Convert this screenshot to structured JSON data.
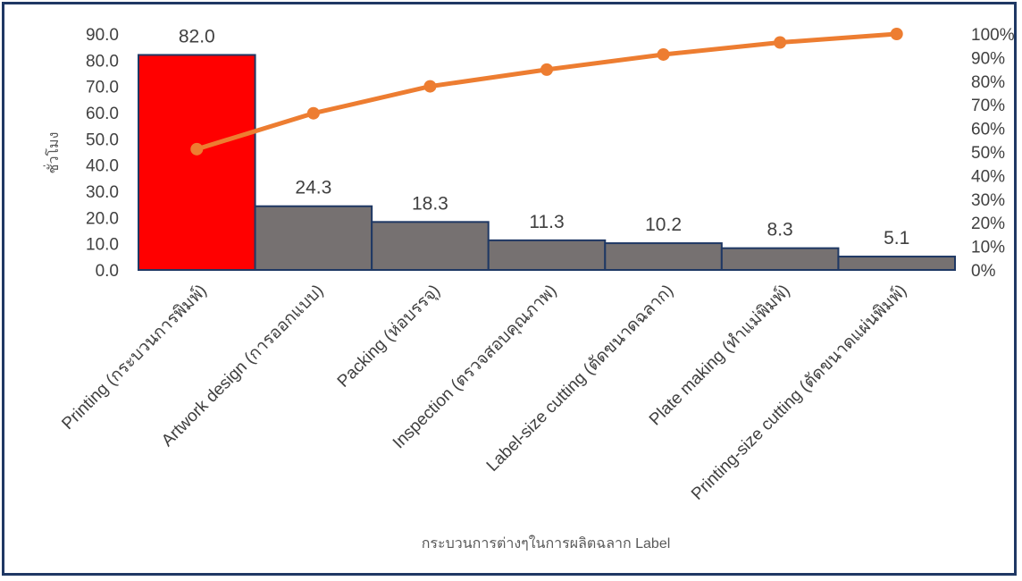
{
  "chart_data": {
    "type": "bar",
    "categories": [
      "Printing (กระบวนการพิมพ์)",
      "Artwork design (การออกแบบ)",
      "Packing (ห่อบรรจุ)",
      "Inspection (ตรวจสอบคุณภาพ)",
      "Label-size cutting (ตัดขนาดฉลาก)",
      "Plate making (ทำแม่พิมพ์)",
      "Printing-size cutting (ตัดขนาดแผ่นพิมพ์)"
    ],
    "series": [
      {
        "type": "bar",
        "values": [
          82.0,
          24.3,
          18.3,
          11.3,
          10.2,
          8.3,
          5.1
        ],
        "data_labels": [
          "82.0",
          "24.3",
          "18.3",
          "11.3",
          "10.2",
          "8.3",
          "5.1"
        ],
        "colors": [
          "#ff0000",
          "#767171",
          "#767171",
          "#767171",
          "#767171",
          "#767171",
          "#767171"
        ],
        "edge_color": "#1f3864"
      },
      {
        "type": "line",
        "axis": "secondary",
        "values": [
          51.2,
          66.4,
          77.8,
          84.9,
          91.3,
          96.4,
          100.0
        ],
        "color": "#ed7d31"
      }
    ],
    "title": "",
    "xlabel": "กระบวนการต่างๆในการผลิตฉลาก Label",
    "ylabel": "ชั่วโมง",
    "ylim": [
      0,
      90
    ],
    "yticks": [
      "0.0",
      "10.0",
      "20.0",
      "30.0",
      "40.0",
      "50.0",
      "60.0",
      "70.0",
      "80.0",
      "90.0"
    ],
    "y2lim": [
      0,
      100
    ],
    "y2ticks": [
      "0%",
      "10%",
      "20%",
      "30%",
      "40%",
      "50%",
      "60%",
      "70%",
      "80%",
      "90%",
      "100%"
    ],
    "grid": false,
    "legend": "none"
  },
  "colors": {
    "frame": "#1f3864",
    "text": "#404040"
  }
}
